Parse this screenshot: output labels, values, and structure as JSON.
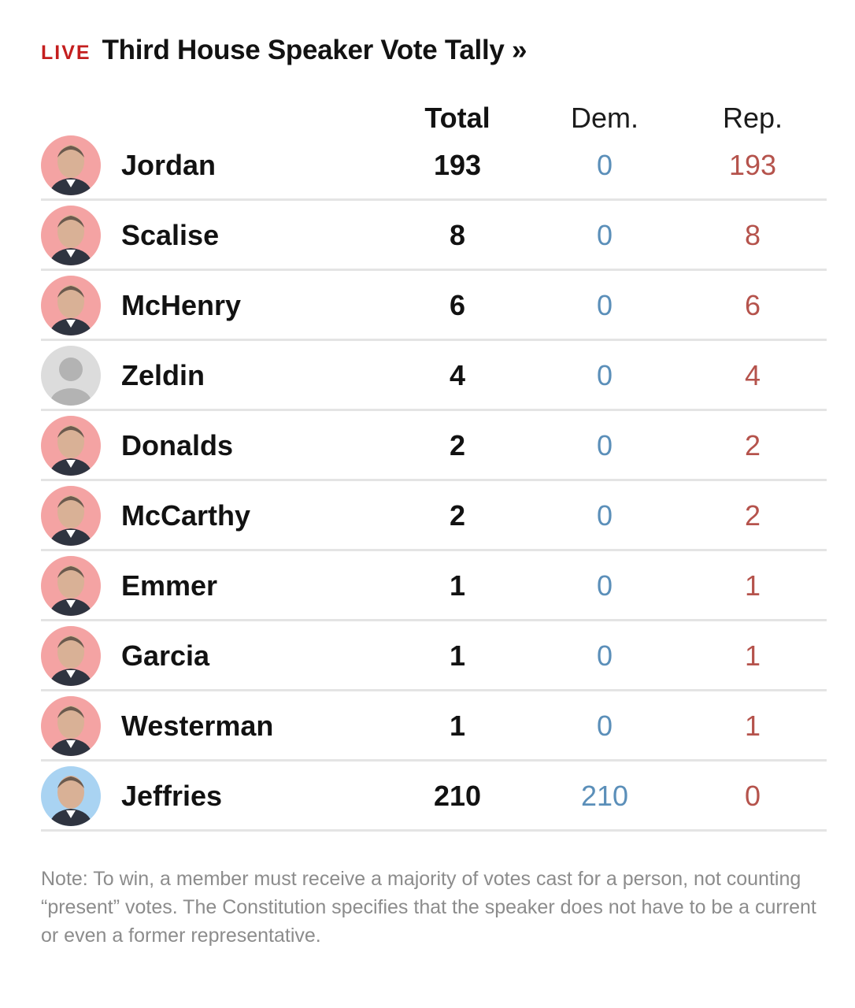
{
  "header": {
    "live_label": "LIVE",
    "title": "Third House Speaker Vote Tally »"
  },
  "colors": {
    "live": "#c41e1e",
    "dem": "#5b8fb9",
    "rep": "#b5534c",
    "rep_avatar_bg": "#f4a3a3",
    "dem_avatar_bg": "#a9d3f2",
    "placeholder_avatar_bg": "#dcdcdc"
  },
  "chart_data": {
    "type": "table",
    "title": "Third House Speaker Vote Tally »",
    "columns": [
      "Total",
      "Dem.",
      "Rep."
    ],
    "rows": [
      {
        "name": "Jordan",
        "party": "rep",
        "avatar": "photo-icon",
        "total": "193",
        "dem": "0",
        "rep": "193"
      },
      {
        "name": "Scalise",
        "party": "rep",
        "avatar": "photo-icon",
        "total": "8",
        "dem": "0",
        "rep": "8"
      },
      {
        "name": "McHenry",
        "party": "rep",
        "avatar": "photo-icon",
        "total": "6",
        "dem": "0",
        "rep": "6"
      },
      {
        "name": "Zeldin",
        "party": "none",
        "avatar": "placeholder-person-icon",
        "total": "4",
        "dem": "0",
        "rep": "4"
      },
      {
        "name": "Donalds",
        "party": "rep",
        "avatar": "photo-icon",
        "total": "2",
        "dem": "0",
        "rep": "2"
      },
      {
        "name": "McCarthy",
        "party": "rep",
        "avatar": "photo-icon",
        "total": "2",
        "dem": "0",
        "rep": "2"
      },
      {
        "name": "Emmer",
        "party": "rep",
        "avatar": "photo-icon",
        "total": "1",
        "dem": "0",
        "rep": "1"
      },
      {
        "name": "Garcia",
        "party": "rep",
        "avatar": "photo-icon",
        "total": "1",
        "dem": "0",
        "rep": "1"
      },
      {
        "name": "Westerman",
        "party": "rep",
        "avatar": "photo-icon",
        "total": "1",
        "dem": "0",
        "rep": "1"
      },
      {
        "name": "Jeffries",
        "party": "dem",
        "avatar": "photo-icon",
        "total": "210",
        "dem": "210",
        "rep": "0"
      }
    ]
  },
  "note": "Note: To win, a member must receive a majority of votes cast for a person, not counting “present” votes. The Constitution specifies that the speaker does not have to be a current or even a former representative."
}
